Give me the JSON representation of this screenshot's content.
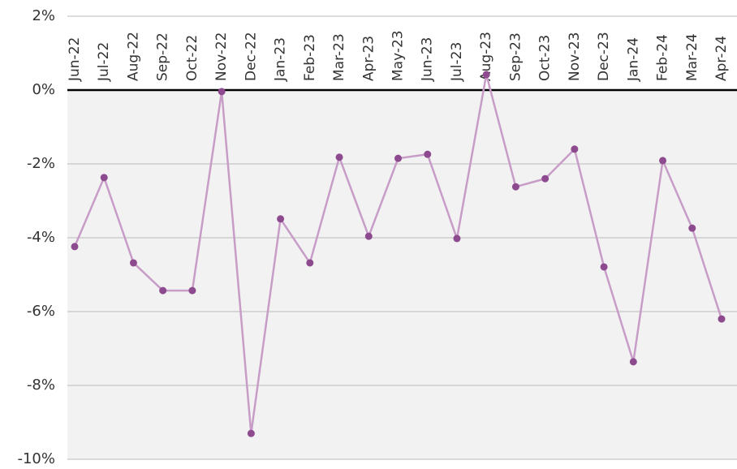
{
  "chart_data": {
    "type": "line",
    "categories": [
      "Jun-22",
      "Jul-22",
      "Aug-22",
      "Sep-22",
      "Oct-22",
      "Nov-22",
      "Dec-22",
      "Jan-23",
      "Feb-23",
      "Mar-23",
      "Apr-23",
      "May-23",
      "Jun-23",
      "Jul-23",
      "Aug-23",
      "Sep-23",
      "Oct-23",
      "Nov-23",
      "Dec-23",
      "Jan-24",
      "Feb-24",
      "Mar-24",
      "Apr-24"
    ],
    "series": [
      {
        "color": "#c79dc8",
        "marker_color": "#8e4a8e",
        "values": [
          -4.24,
          -2.37,
          -4.68,
          -5.43,
          -5.43,
          -0.04,
          -9.3,
          -3.49,
          -4.68,
          -1.82,
          -3.96,
          -1.85,
          -1.74,
          -4.02,
          0.42,
          -2.62,
          -2.4,
          -1.6,
          -4.79,
          -7.36,
          -1.91,
          -3.74,
          -6.2
        ]
      }
    ],
    "ylim": [
      -10,
      2
    ],
    "yticks": [
      {
        "value": -10,
        "label": "-10%"
      },
      {
        "value": -8,
        "label": "-8%"
      },
      {
        "value": -6,
        "label": "-6%"
      },
      {
        "value": -4,
        "label": "-4%"
      },
      {
        "value": -2,
        "label": "-2%"
      },
      {
        "value": 0,
        "label": "0%"
      },
      {
        "value": 2,
        "label": "2%"
      }
    ],
    "grid": true
  }
}
